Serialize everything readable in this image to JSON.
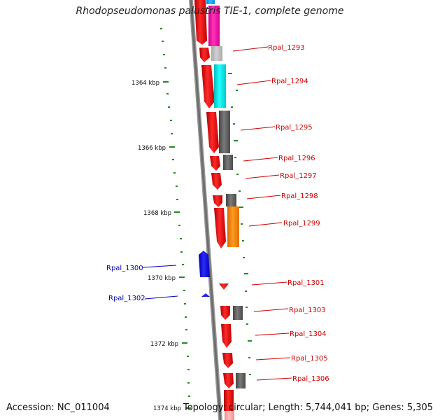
{
  "title": "Rhodopseudomonas palustris TIE-1, complete genome",
  "accession": "Accession: NC_011004",
  "topology": "Topology: circular; Length: 5,744,041 bp; Genes: 5,305",
  "scale_labels": [
    "1364 kbp",
    "1366 kbp",
    "1368 kbp",
    "1370 kbp",
    "1372 kbp",
    "1374 kbp"
  ],
  "genes_right": [
    "Rpal_1293",
    "Rpal_1294",
    "Rpal_1295",
    "Rpal_1296",
    "Rpal_1297",
    "Rpal_1298",
    "Rpal_1299",
    "Rpal_1301",
    "Rpal_1303",
    "Rpal_1304",
    "Rpal_1305",
    "Rpal_1306"
  ],
  "genes_left": [
    "Rpal_1300",
    "Rpal_1302"
  ],
  "colors": {
    "forward_strand": "#ff0000",
    "reverse_strand": "#0000ee",
    "backbone": "#808080",
    "tick": "#228b22",
    "label_red": "#cc0000",
    "label_blue": "#0000bb",
    "magenta": "#ff00aa",
    "cyan": "#00eeee",
    "grey": "#666666",
    "light_grey": "#c0c0c0",
    "orange": "#ff8800",
    "light_blue": "#00aaff",
    "pink": "#ffaaaa"
  }
}
